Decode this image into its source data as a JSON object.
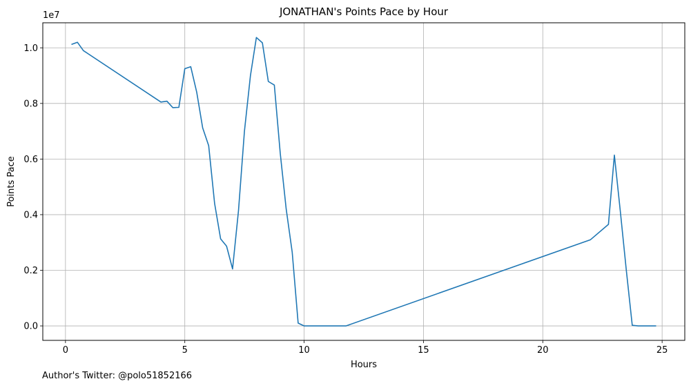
{
  "chart_data": {
    "type": "line",
    "title": "JONATHAN's Points Pace by Hour",
    "xlabel": "Hours",
    "ylabel": "Points Pace",
    "y_offset_label": "1e7",
    "xlim": [
      -0.95,
      25.95
    ],
    "ylim": [
      -0.052,
      1.09
    ],
    "xticks": [
      0,
      5,
      10,
      15,
      20,
      25
    ],
    "xtick_labels": [
      "0",
      "5",
      "10",
      "15",
      "20",
      "25"
    ],
    "yticks": [
      0.0,
      0.2,
      0.4,
      0.6,
      0.8,
      1.0
    ],
    "ytick_labels": [
      "0.0",
      "0.2",
      "0.4",
      "0.6",
      "0.8",
      "1.0"
    ],
    "grid": true,
    "series": [
      {
        "color": "#1f77b4",
        "x": [
          0.25,
          0.5,
          0.75,
          4.0,
          4.25,
          4.5,
          4.75,
          5.0,
          5.25,
          5.5,
          5.75,
          6.0,
          6.25,
          6.5,
          6.75,
          7.0,
          7.25,
          7.5,
          7.75,
          8.0,
          8.25,
          8.5,
          8.75,
          9.0,
          9.25,
          9.5,
          9.75,
          10.0,
          11.75,
          22.0,
          22.75,
          23.0,
          23.25,
          23.5,
          23.75,
          24.0,
          24.75
        ],
        "y": [
          1.012,
          1.02,
          0.99,
          0.805,
          0.808,
          0.785,
          0.786,
          0.925,
          0.932,
          0.84,
          0.712,
          0.648,
          0.44,
          0.313,
          0.287,
          0.205,
          0.415,
          0.7,
          0.9,
          1.037,
          1.018,
          0.879,
          0.866,
          0.62,
          0.42,
          0.265,
          0.01,
          0.0,
          0.0,
          0.31,
          0.365,
          0.614,
          0.41,
          0.2,
          0.002,
          0.0,
          0.0
        ]
      }
    ]
  },
  "footer": {
    "author_note": "Author's Twitter: @polo51852166"
  }
}
